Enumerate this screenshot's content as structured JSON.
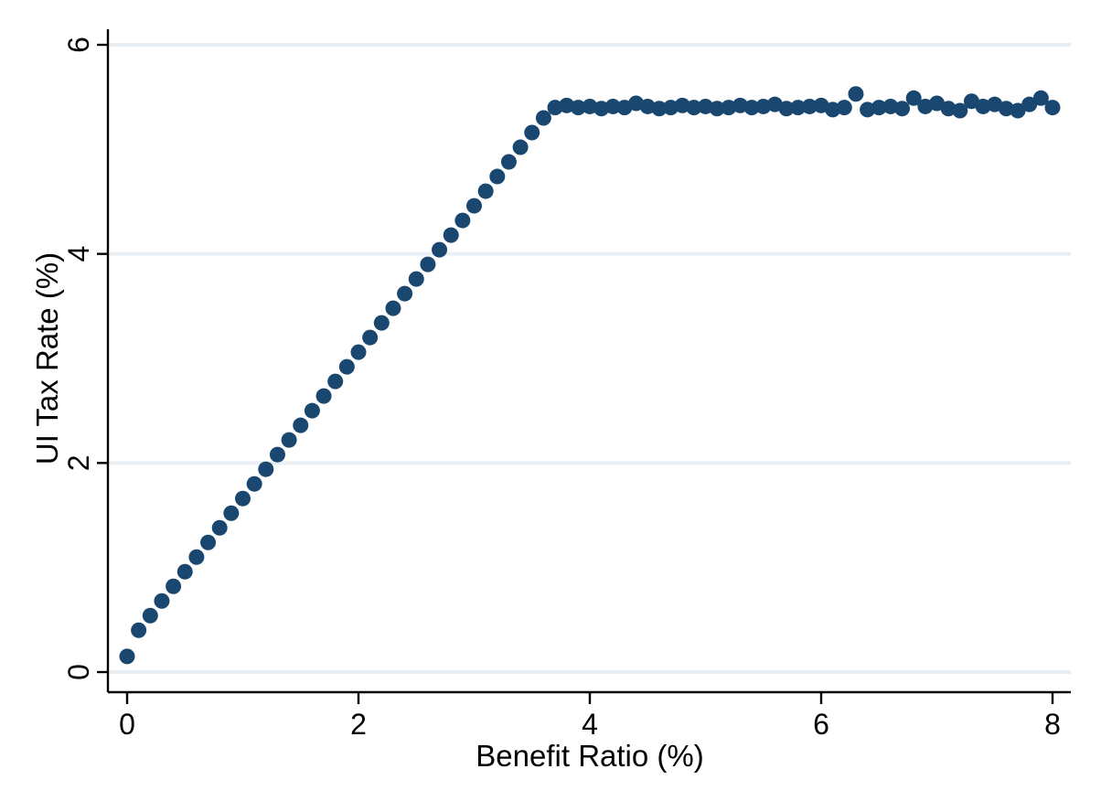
{
  "chart_data": {
    "type": "scatter",
    "title": "",
    "xlabel": "Benefit Ratio (%)",
    "ylabel": "UI Tax Rate (%)",
    "xlim": [
      0,
      8
    ],
    "ylim": [
      0,
      6
    ],
    "x_ticks": [
      0,
      2,
      4,
      6,
      8
    ],
    "y_ticks": [
      0,
      2,
      4,
      6
    ],
    "grid": "horizontal-only",
    "legend": "none",
    "marker_color": "#1a476f",
    "grid_color": "#e9eff3",
    "axis_color": "#000000",
    "background_color": "#ffffff",
    "points": [
      [
        0.0,
        0.15
      ],
      [
        0.1,
        0.4
      ],
      [
        0.2,
        0.54
      ],
      [
        0.3,
        0.68
      ],
      [
        0.4,
        0.82
      ],
      [
        0.5,
        0.96
      ],
      [
        0.6,
        1.1
      ],
      [
        0.7,
        1.24
      ],
      [
        0.8,
        1.38
      ],
      [
        0.9,
        1.52
      ],
      [
        1.0,
        1.66
      ],
      [
        1.1,
        1.8
      ],
      [
        1.2,
        1.94
      ],
      [
        1.3,
        2.08
      ],
      [
        1.4,
        2.22
      ],
      [
        1.5,
        2.36
      ],
      [
        1.6,
        2.5
      ],
      [
        1.7,
        2.64
      ],
      [
        1.8,
        2.78
      ],
      [
        1.9,
        2.92
      ],
      [
        2.0,
        3.06
      ],
      [
        2.1,
        3.2
      ],
      [
        2.2,
        3.34
      ],
      [
        2.3,
        3.48
      ],
      [
        2.4,
        3.62
      ],
      [
        2.5,
        3.76
      ],
      [
        2.6,
        3.9
      ],
      [
        2.7,
        4.04
      ],
      [
        2.8,
        4.18
      ],
      [
        2.9,
        4.32
      ],
      [
        3.0,
        4.46
      ],
      [
        3.1,
        4.6
      ],
      [
        3.2,
        4.74
      ],
      [
        3.3,
        4.88
      ],
      [
        3.4,
        5.02
      ],
      [
        3.5,
        5.16
      ],
      [
        3.6,
        5.3
      ],
      [
        3.7,
        5.4
      ],
      [
        3.8,
        5.42
      ],
      [
        3.9,
        5.4
      ],
      [
        4.0,
        5.41
      ],
      [
        4.1,
        5.39
      ],
      [
        4.2,
        5.41
      ],
      [
        4.3,
        5.4
      ],
      [
        4.4,
        5.44
      ],
      [
        4.5,
        5.41
      ],
      [
        4.6,
        5.39
      ],
      [
        4.7,
        5.4
      ],
      [
        4.8,
        5.42
      ],
      [
        4.9,
        5.4
      ],
      [
        5.0,
        5.41
      ],
      [
        5.1,
        5.39
      ],
      [
        5.2,
        5.4
      ],
      [
        5.3,
        5.42
      ],
      [
        5.4,
        5.4
      ],
      [
        5.5,
        5.41
      ],
      [
        5.6,
        5.43
      ],
      [
        5.7,
        5.39
      ],
      [
        5.8,
        5.4
      ],
      [
        5.9,
        5.41
      ],
      [
        6.0,
        5.42
      ],
      [
        6.1,
        5.38
      ],
      [
        6.2,
        5.4
      ],
      [
        6.3,
        5.53
      ],
      [
        6.4,
        5.38
      ],
      [
        6.5,
        5.4
      ],
      [
        6.6,
        5.41
      ],
      [
        6.7,
        5.39
      ],
      [
        6.8,
        5.49
      ],
      [
        6.9,
        5.41
      ],
      [
        7.0,
        5.44
      ],
      [
        7.1,
        5.39
      ],
      [
        7.2,
        5.37
      ],
      [
        7.3,
        5.46
      ],
      [
        7.4,
        5.41
      ],
      [
        7.5,
        5.43
      ],
      [
        7.6,
        5.39
      ],
      [
        7.7,
        5.37
      ],
      [
        7.8,
        5.43
      ],
      [
        7.9,
        5.49
      ],
      [
        8.0,
        5.4
      ]
    ]
  }
}
